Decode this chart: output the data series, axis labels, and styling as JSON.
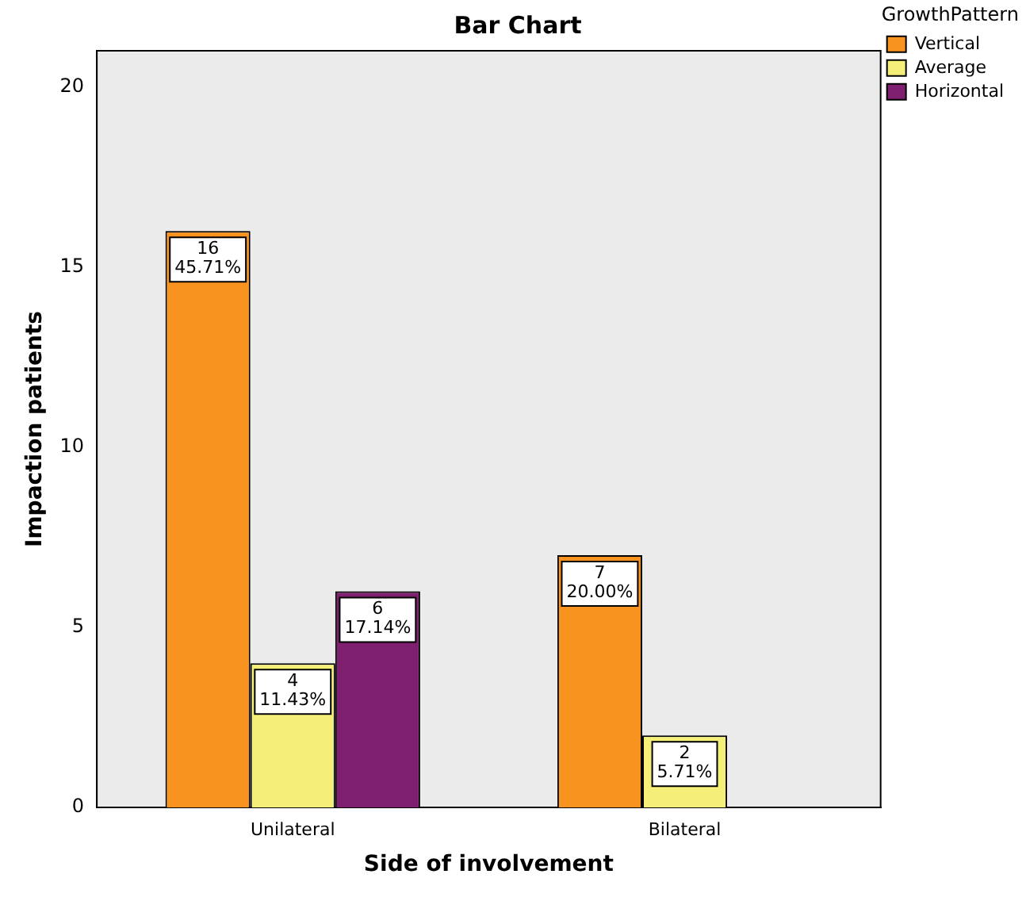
{
  "chart_data": {
    "type": "bar",
    "title": "Bar Chart",
    "xlabel": "Side of involvement",
    "ylabel": "Impaction patients",
    "legend_title": "GrowthPattern",
    "categories": [
      "Unilateral",
      "Bilateral"
    ],
    "series": [
      {
        "name": "Vertical",
        "color": "#f7931e",
        "values": [
          16,
          7
        ],
        "value_labels": [
          "16\n45.71%",
          "7\n20.00%"
        ]
      },
      {
        "name": "Average",
        "color": "#f5ef7a",
        "values": [
          4,
          2
        ],
        "value_labels": [
          "4\n11.43%",
          "2\n5.71%"
        ]
      },
      {
        "name": "Horizontal",
        "color": "#7f1f6f",
        "values": [
          6,
          null
        ],
        "value_labels": [
          "6\n17.14%",
          null
        ]
      }
    ],
    "ylim": [
      0,
      21
    ],
    "yticks": [
      0,
      5,
      10,
      15,
      20
    ],
    "grid": false,
    "legend": "top right"
  }
}
